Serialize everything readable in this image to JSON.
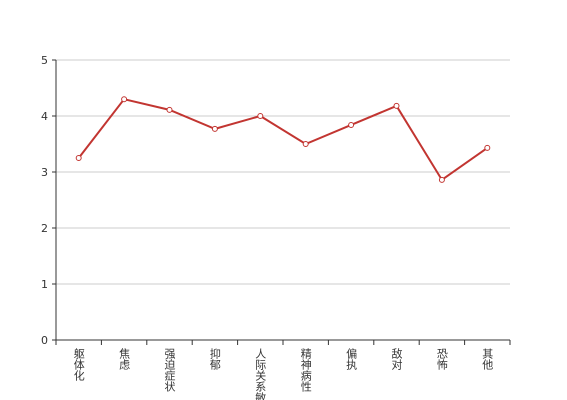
{
  "chart_data": {
    "type": "line",
    "categories": [
      "躯体化",
      "焦虑",
      "强迫症状",
      "抑郁",
      "人际关系敏感",
      "精神病性",
      "偏执",
      "敌对",
      "恐怖",
      "其他"
    ],
    "values": [
      3.25,
      4.3,
      4.11,
      3.77,
      4.0,
      3.5,
      3.84,
      4.18,
      2.86,
      3.43
    ],
    "color": "#c23531",
    "ylim": [
      0,
      5
    ],
    "yticks": [
      0,
      1,
      2,
      3,
      4,
      5
    ],
    "grid": true
  }
}
